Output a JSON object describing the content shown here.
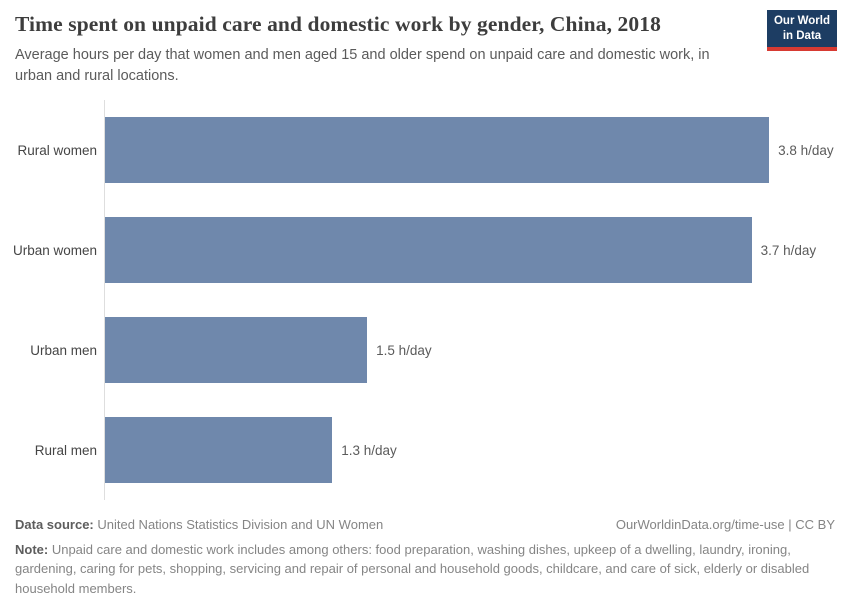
{
  "header": {
    "title": "Time spent on unpaid care and domestic work by gender, China, 2018",
    "subtitle": "Average hours per day that women and men aged 15 and older spend on unpaid care and domestic work, in urban and rural locations.",
    "logo": {
      "line1": "Our World",
      "line2": "in Data",
      "bg_color": "#1d3d63",
      "accent_color": "#d73a32"
    }
  },
  "chart_data": {
    "type": "bar",
    "orientation": "horizontal",
    "title": "Time spent on unpaid care and domestic work by gender, China, 2018",
    "categories": [
      "Rural women",
      "Urban women",
      "Urban men",
      "Rural men"
    ],
    "values": [
      3.8,
      3.7,
      1.5,
      1.3
    ],
    "value_labels": [
      "3.8 h/day",
      "3.7 h/day",
      "1.5 h/day",
      "1.3 h/day"
    ],
    "unit": "h/day",
    "bar_color": "#6f88ac",
    "xlim": [
      0,
      4.16
    ],
    "grid": false,
    "legend": "none"
  },
  "footer": {
    "data_source_label": "Data source:",
    "data_source_value": " United Nations Statistics Division and UN Women",
    "link": "OurWorldinData.org/time-use | CC BY",
    "note_label": "Note:",
    "note_value": " Unpaid care and domestic work includes among others: food preparation, washing dishes, upkeep of a dwelling, laundry, ironing, gardening, caring for pets, shopping, servicing and repair of personal and household goods, childcare, and care of sick, elderly or disabled household members."
  }
}
